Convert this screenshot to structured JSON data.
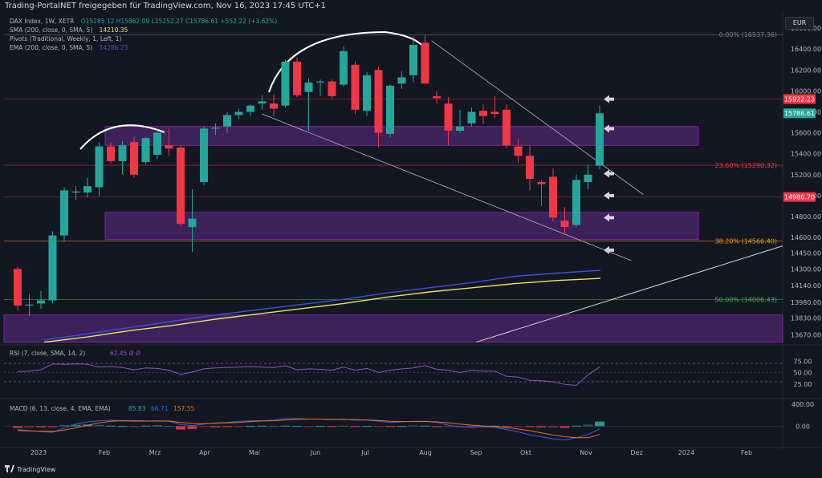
{
  "header": {
    "title": "Trading-PortalNET freigegeben für TradingView.com, Nov 16, 2023 17:45 UTC+1"
  },
  "legend": {
    "symbol": "DAX Index, 1W, XETR",
    "ohlc": "O15285.12 H15862.09 L15252.27 C15786.61 +552.22 (+3.62%)",
    "sma_label": "SMA (200, close, 0, SMA, 5)",
    "sma_value": "14210.35",
    "pivots_label": "Pivots (Traditional, Weekly, 1, Left, 1)",
    "ema_label": "EMA (200, close, 0, SMA, 5)",
    "ema_value": "14286.23"
  },
  "currency": "EUR",
  "footer": {
    "brand": "TradingView"
  },
  "colors": {
    "up": "#26a69a",
    "down": "#f23645",
    "sma": "#e8e55c",
    "ema": "#3d4fdc",
    "zone": "#5e2a8a",
    "fib": "#787b86",
    "rsi": "#7e57c2"
  },
  "chart_data": {
    "type": "candlestick",
    "price_axis": {
      "ylim": [
        13590,
        16700
      ],
      "ticks": [
        "16600.00",
        "16400.00",
        "16200.00",
        "16000.00",
        "15800.00",
        "15600.00",
        "15400.00",
        "15200.00",
        "15000.00",
        "14800.00",
        "14600.00",
        "14450.00",
        "14300.00",
        "14140.00",
        "13980.00",
        "13830.00",
        "13670.00"
      ]
    },
    "time_axis": {
      "labels": [
        "2023",
        "Feb",
        "Mrz",
        "Apr",
        "Mai",
        "Jun",
        "Jul",
        "Aug",
        "Sep",
        "Okt",
        "Nov",
        "Dez",
        "2024",
        "Feb"
      ]
    },
    "candles": [
      {
        "o": 14300,
        "h": 14320,
        "l": 13900,
        "c": 13950
      },
      {
        "o": 13950,
        "h": 14060,
        "l": 13850,
        "c": 13960
      },
      {
        "o": 13970,
        "h": 14090,
        "l": 13920,
        "c": 14000
      },
      {
        "o": 14000,
        "h": 14660,
        "l": 13970,
        "c": 14620
      },
      {
        "o": 14620,
        "h": 15080,
        "l": 14560,
        "c": 15050
      },
      {
        "o": 15030,
        "h": 15090,
        "l": 14960,
        "c": 15040
      },
      {
        "o": 15030,
        "h": 15170,
        "l": 14980,
        "c": 15090
      },
      {
        "o": 15080,
        "h": 15510,
        "l": 15000,
        "c": 15470
      },
      {
        "o": 15470,
        "h": 15510,
        "l": 15310,
        "c": 15330
      },
      {
        "o": 15330,
        "h": 15520,
        "l": 15200,
        "c": 15480
      },
      {
        "o": 15510,
        "h": 15560,
        "l": 15170,
        "c": 15200
      },
      {
        "o": 15320,
        "h": 15560,
        "l": 15300,
        "c": 15550
      },
      {
        "o": 15390,
        "h": 15640,
        "l": 15350,
        "c": 15600
      },
      {
        "o": 15480,
        "h": 15640,
        "l": 15380,
        "c": 15450
      },
      {
        "o": 15460,
        "h": 15480,
        "l": 14710,
        "c": 14730
      },
      {
        "o": 14700,
        "h": 15060,
        "l": 14460,
        "c": 14780
      },
      {
        "o": 15130,
        "h": 15660,
        "l": 15100,
        "c": 15640
      },
      {
        "o": 15640,
        "h": 15690,
        "l": 15580,
        "c": 15650
      },
      {
        "o": 15660,
        "h": 15800,
        "l": 15600,
        "c": 15770
      },
      {
        "o": 15770,
        "h": 15830,
        "l": 15730,
        "c": 15800
      },
      {
        "o": 15800,
        "h": 15870,
        "l": 15760,
        "c": 15860
      },
      {
        "o": 15880,
        "h": 15960,
        "l": 15820,
        "c": 15900
      },
      {
        "o": 15880,
        "h": 15970,
        "l": 15760,
        "c": 15830
      },
      {
        "o": 15860,
        "h": 16300,
        "l": 15840,
        "c": 16280
      },
      {
        "o": 16280,
        "h": 16320,
        "l": 15940,
        "c": 15960
      },
      {
        "o": 15990,
        "h": 16120,
        "l": 15620,
        "c": 16080
      },
      {
        "o": 16080,
        "h": 16110,
        "l": 15950,
        "c": 16090
      },
      {
        "o": 16090,
        "h": 16110,
        "l": 15930,
        "c": 15950
      },
      {
        "o": 16060,
        "h": 16430,
        "l": 16040,
        "c": 16380
      },
      {
        "o": 16250,
        "h": 16280,
        "l": 15780,
        "c": 15820
      },
      {
        "o": 15810,
        "h": 16180,
        "l": 15760,
        "c": 16150
      },
      {
        "o": 16200,
        "h": 16230,
        "l": 15460,
        "c": 15600
      },
      {
        "o": 15590,
        "h": 16060,
        "l": 15560,
        "c": 16050
      },
      {
        "o": 16070,
        "h": 16190,
        "l": 16020,
        "c": 16130
      },
      {
        "o": 16150,
        "h": 16520,
        "l": 16080,
        "c": 16440
      },
      {
        "o": 16460,
        "h": 16530,
        "l": 16070,
        "c": 16070
      },
      {
        "o": 15950,
        "h": 16000,
        "l": 15880,
        "c": 15930
      },
      {
        "o": 15880,
        "h": 15940,
        "l": 15480,
        "c": 15620
      },
      {
        "o": 15620,
        "h": 15820,
        "l": 15600,
        "c": 15660
      },
      {
        "o": 15690,
        "h": 15840,
        "l": 15660,
        "c": 15800
      },
      {
        "o": 15810,
        "h": 15870,
        "l": 15680,
        "c": 15760
      },
      {
        "o": 15800,
        "h": 15950,
        "l": 15740,
        "c": 15780
      },
      {
        "o": 15820,
        "h": 15870,
        "l": 15450,
        "c": 15480
      },
      {
        "o": 15470,
        "h": 15540,
        "l": 15310,
        "c": 15380
      },
      {
        "o": 15380,
        "h": 15470,
        "l": 15050,
        "c": 15160
      },
      {
        "o": 15130,
        "h": 15150,
        "l": 14900,
        "c": 15110
      },
      {
        "o": 15180,
        "h": 15260,
        "l": 14760,
        "c": 14790
      },
      {
        "o": 14760,
        "h": 14890,
        "l": 14630,
        "c": 14700
      },
      {
        "o": 14720,
        "h": 15200,
        "l": 14700,
        "c": 15150
      },
      {
        "o": 15130,
        "h": 15300,
        "l": 15060,
        "c": 15200
      },
      {
        "o": 15285,
        "h": 15862,
        "l": 15252,
        "c": 15786
      }
    ],
    "price_labels": [
      {
        "value": 15922.23,
        "text": "15922.23",
        "color": "#f23645"
      },
      {
        "value": 15786.61,
        "text": "15786.61",
        "color": "#26a69a"
      },
      {
        "value": 14986.7,
        "text": "14986.70",
        "color": "#f23645"
      }
    ],
    "fib_levels": [
      {
        "value": 16537.36,
        "text": "0.00% (16537.36)"
      },
      {
        "value": 15290.32,
        "text": "23.60% (15290.32)"
      },
      {
        "value": 14566.4,
        "text": "38.20% (14566.40)"
      },
      {
        "value": 14006.43,
        "text": "50.00% (14006.43)"
      }
    ],
    "zones": [
      {
        "from": 15480,
        "to": 15660
      },
      {
        "from": 14580,
        "to": 14840
      },
      {
        "from": 13600,
        "to": 13860
      }
    ],
    "sma_200": [
      13600,
      13650,
      13710,
      13760,
      13820,
      13870,
      13920,
      13970,
      14030,
      14080,
      14120,
      14160,
      14190,
      14210
    ],
    "ema_200": [
      13620,
      13680,
      13740,
      13800,
      13860,
      13910,
      13960,
      14010,
      14070,
      14120,
      14170,
      14230,
      14260,
      14286
    ],
    "rsi": {
      "label": "RSI (7, close, SMA, 14, 2)",
      "value_text": "62.45  Ø  Ø",
      "ticks": [
        "75.00",
        "50.00",
        "25.00"
      ],
      "bands": [
        70,
        30
      ],
      "values": [
        52,
        53,
        56,
        69,
        68,
        69,
        68,
        62,
        63,
        61,
        56,
        60,
        59,
        55,
        46,
        51,
        58,
        60,
        61,
        62,
        63,
        62,
        61,
        65,
        56,
        58,
        57,
        55,
        62,
        55,
        59,
        50,
        55,
        58,
        60,
        65,
        57,
        55,
        50,
        55,
        53,
        53,
        42,
        40,
        33,
        32,
        30,
        24,
        22,
        45,
        62
      ]
    },
    "macd": {
      "label": "MACD (6, 13, close, 4, EMA, EMA)",
      "values_text": [
        "85.83",
        "66.71",
        "157.55"
      ],
      "ticks": [
        "400.00",
        "0.00"
      ],
      "ylim": [
        -300,
        430
      ],
      "hist": [
        -30,
        -25,
        -20,
        -15,
        20,
        25,
        30,
        25,
        10,
        5,
        -5,
        10,
        15,
        5,
        -60,
        -50,
        -10,
        -20,
        -10,
        -10,
        5,
        10,
        5,
        10,
        5,
        -5,
        5,
        -5,
        10,
        -10,
        5,
        -15,
        -10,
        5,
        15,
        10,
        -10,
        -15,
        -10,
        -5,
        5,
        10,
        -5,
        -10,
        -15,
        -20,
        -25,
        -30,
        10,
        30,
        85
      ],
      "macd_line": [
        -60,
        -80,
        -100,
        -110,
        -30,
        40,
        80,
        100,
        110,
        100,
        90,
        90,
        95,
        90,
        30,
        10,
        40,
        60,
        70,
        90,
        100,
        100,
        110,
        140,
        140,
        130,
        130,
        120,
        130,
        110,
        110,
        90,
        70,
        80,
        90,
        90,
        70,
        20,
        -10,
        -20,
        -10,
        -20,
        -60,
        -100,
        -160,
        -190,
        -230,
        -250,
        -210,
        -150,
        -50
      ],
      "signal_line": [
        -80,
        -85,
        -90,
        -95,
        -70,
        -30,
        20,
        60,
        90,
        100,
        100,
        95,
        95,
        95,
        70,
        50,
        45,
        55,
        60,
        70,
        85,
        95,
        100,
        115,
        125,
        130,
        130,
        125,
        125,
        120,
        115,
        105,
        90,
        85,
        85,
        85,
        80,
        60,
        40,
        20,
        5,
        -5,
        -25,
        -50,
        -80,
        -120,
        -160,
        -190,
        -210,
        -210,
        -150
      ]
    }
  }
}
